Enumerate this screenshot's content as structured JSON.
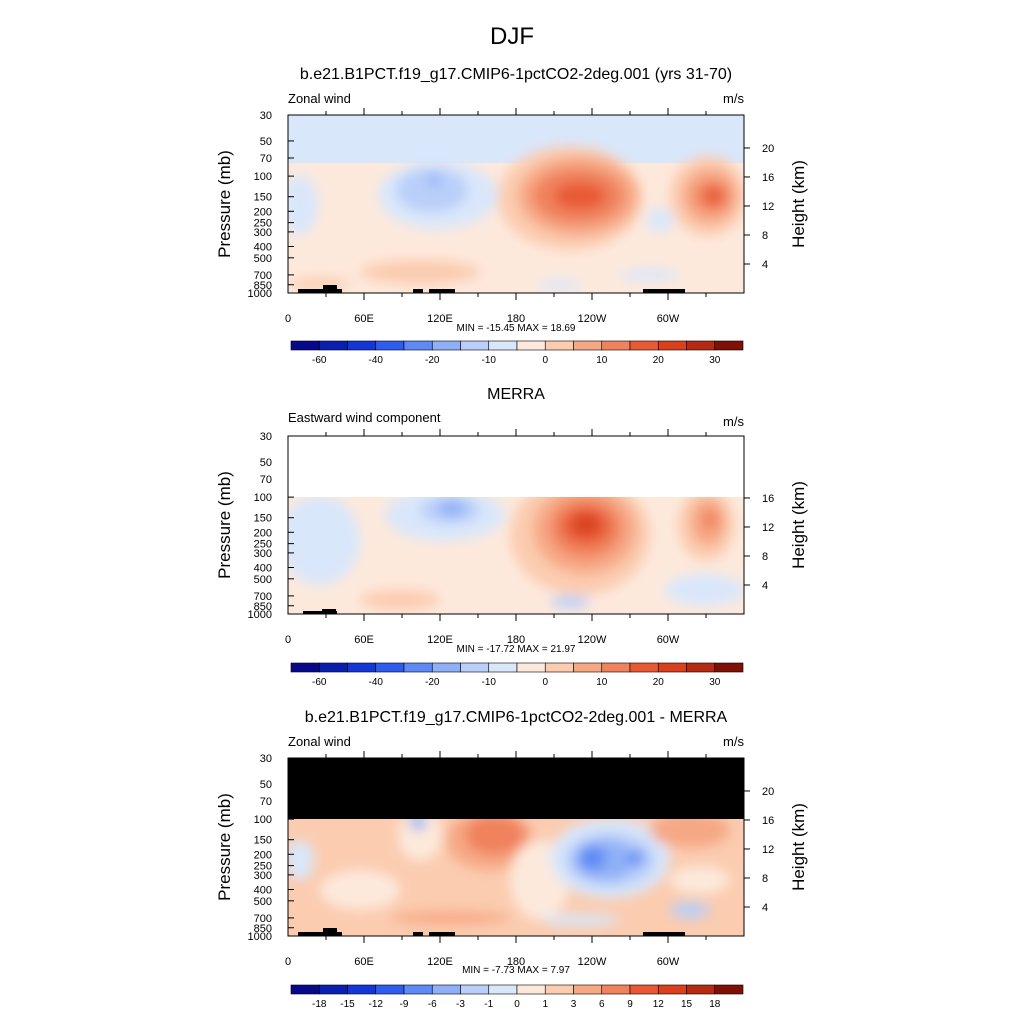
{
  "figure": {
    "title": "DJF"
  },
  "colors": {
    "blue_ramp": [
      "#08088a",
      "#0a1fb0",
      "#1536d6",
      "#2e5cef",
      "#5f8af5",
      "#8fb0f7",
      "#b9cff9",
      "#d9e7fb"
    ],
    "red_ramp": [
      "#fde9dc",
      "#fbccb0",
      "#f6a885",
      "#f0825d",
      "#e85a34",
      "#d8401e",
      "#b52a12",
      "#7e1005"
    ],
    "mask": "#000000",
    "land": "#000000"
  },
  "chart_data": [
    {
      "type": "heatmap",
      "title": "b.e21.B1PCT.f19_g17.CMIP6-1pctCO2-2deg.001 (yrs 31-70)",
      "left_label": "Zonal wind",
      "right_label": "m/s",
      "ylabel": "Pressure (mb)",
      "y2label": "Height (km)",
      "x_ticks": [
        "0",
        "60E",
        "120E",
        "180",
        "120W",
        "60W"
      ],
      "y_ticks": [
        "30",
        "50",
        "70",
        "100",
        "150",
        "200",
        "250",
        "300",
        "400",
        "500",
        "700",
        "850",
        "1000"
      ],
      "y2_ticks": [
        "20",
        "16",
        "12",
        "8",
        "4"
      ],
      "stats": "MIN = -15.45  MAX =  18.69",
      "colorbar_labels": [
        "-60",
        "-40",
        "-20",
        "-10",
        "0",
        "10",
        "20",
        "30"
      ],
      "ylim": [
        1000,
        30
      ],
      "top_pressure": 30
    },
    {
      "type": "heatmap",
      "title": "MERRA",
      "left_label": "Eastward wind component",
      "right_label": "m/s",
      "ylabel": "Pressure (mb)",
      "y2label": "Height (km)",
      "x_ticks": [
        "0",
        "60E",
        "120E",
        "180",
        "120W",
        "60W"
      ],
      "y_ticks": [
        "30",
        "50",
        "70",
        "100",
        "150",
        "200",
        "250",
        "300",
        "400",
        "500",
        "700",
        "850",
        "1000"
      ],
      "y2_ticks": [
        "16",
        "12",
        "8",
        "4"
      ],
      "stats": "MIN = -17.72  MAX =  21.97",
      "colorbar_labels": [
        "-60",
        "-40",
        "-20",
        "-10",
        "0",
        "10",
        "20",
        "30"
      ],
      "ylim": [
        1000,
        30
      ],
      "top_pressure": 100
    },
    {
      "type": "heatmap",
      "title": "b.e21.B1PCT.f19_g17.CMIP6-1pctCO2-2deg.001 - MERRA",
      "left_label": "Zonal wind",
      "right_label": "m/s",
      "ylabel": "Pressure (mb)",
      "y2label": "Height (km)",
      "x_ticks": [
        "0",
        "60E",
        "120E",
        "180",
        "120W",
        "60W"
      ],
      "y_ticks": [
        "30",
        "50",
        "70",
        "100",
        "150",
        "200",
        "250",
        "300",
        "400",
        "500",
        "700",
        "850",
        "1000"
      ],
      "y2_ticks": [
        "20",
        "16",
        "12",
        "8",
        "4"
      ],
      "stats": "MIN = -7.73  MAX =  7.97",
      "colorbar_labels": [
        "-18",
        "-15",
        "-12",
        "-9",
        "-6",
        "-3",
        "-1",
        "0",
        "1",
        "3",
        "6",
        "9",
        "12",
        "15",
        "18"
      ],
      "ylim": [
        1000,
        30
      ],
      "top_pressure": 30,
      "masked_above": 100
    }
  ]
}
